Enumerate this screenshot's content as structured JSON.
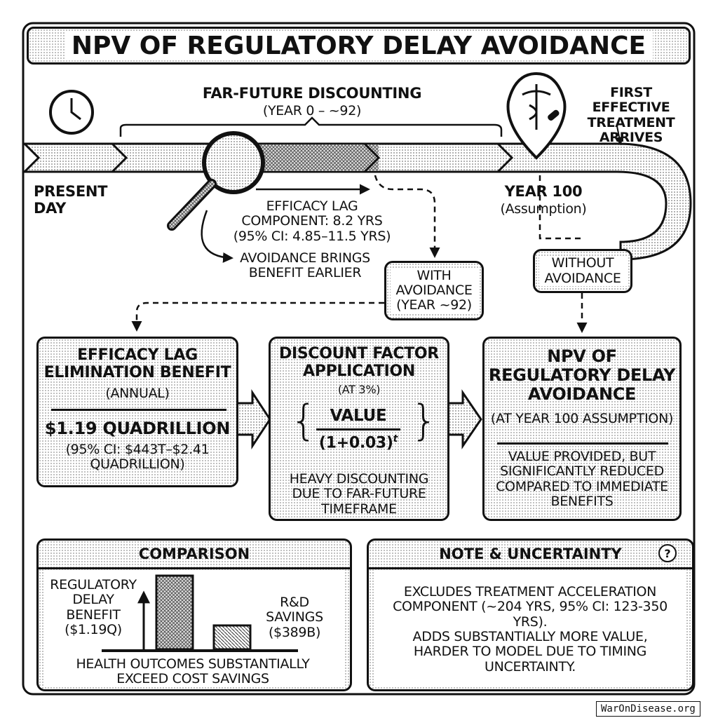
{
  "title": "NPV OF REGULATORY DELAY AVOIDANCE",
  "timeline": {
    "far_future_label": "FAR-FUTURE DISCOUNTING",
    "far_future_range": "(YEAR 0 – ~92)",
    "present_day": "PRESENT DAY",
    "year_100": "YEAR 100",
    "year_100_note": "(Assumption)",
    "first_treatment": "FIRST EFFECTIVE TREATMENT ARRIVES",
    "efficacy_lag_line1": "EFFICACY LAG",
    "efficacy_lag_line2": "COMPONENT: 8.2 YRS",
    "efficacy_lag_ci": "(95% CI: 4.85–11.5 YRS)",
    "avoidance_earlier": "AVOIDANCE BRINGS BENEFIT EARLIER",
    "with_avoidance": "WITH AVOIDANCE (YEAR ~92)",
    "without_avoidance": "WITHOUT AVOIDANCE"
  },
  "boxes": {
    "benefit": {
      "title": "EFFICACY LAG ELIMINATION BENEFIT",
      "sub": "(ANNUAL)",
      "value": "$1.19 QUADRILLION",
      "ci": "(95% CI: $443T–$2.41 QUADRILLION)"
    },
    "discount": {
      "title": "DISCOUNT FACTOR APPLICATION",
      "sub": "(AT 3%)",
      "numerator": "VALUE",
      "denominator": "(1+0.03)",
      "exponent": "t",
      "note": "HEAVY DISCOUNTING DUE TO FAR-FUTURE TIMEFRAME"
    },
    "npv": {
      "title": "NPV OF REGULATORY DELAY AVOIDANCE",
      "sub": "(AT YEAR 100 ASSUMPTION)",
      "note": "VALUE PROVIDED, BUT SIGNIFICANTLY REDUCED COMPARED TO IMMEDIATE BENEFITS"
    }
  },
  "comparison": {
    "title": "COMPARISON",
    "left_label": "REGULATORY DELAY BENEFIT ($1.19Q)",
    "right_label": "R&D SAVINGS ($389B)",
    "caption": "HEALTH OUTCOMES SUBSTANTIALLY EXCEED COST SAVINGS"
  },
  "note": {
    "title": "NOTE & UNCERTAINTY",
    "icon": "question-icon",
    "text1": "EXCLUDES TREATMENT ACCELERATION COMPONENT (~204 YRS, 95% CI: 123-350 YRS).",
    "text2": "ADDS SUBSTANTIALLY MORE VALUE, HARDER TO MODEL DUE TO TIMING UNCERTAINTY."
  },
  "watermark": "WarOnDisease.org"
}
